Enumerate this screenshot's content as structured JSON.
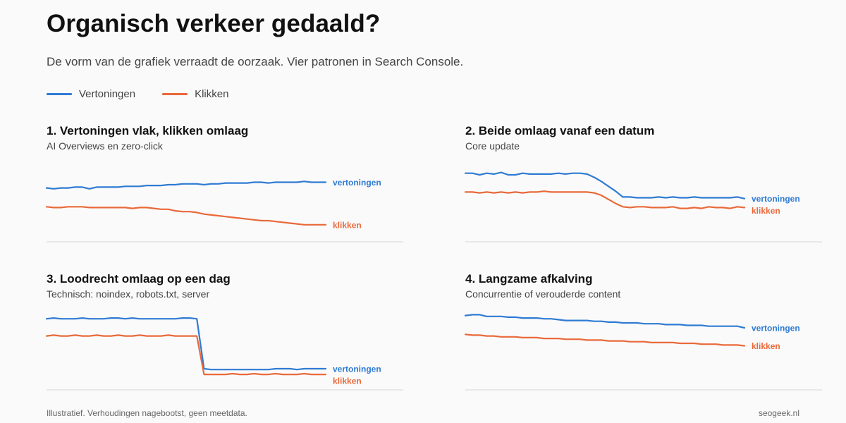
{
  "header": {
    "title": "Organisch verkeer gedaald?",
    "subtitle": "De vorm van de grafiek verraadt de oorzaak. Vier patronen in Search Console."
  },
  "legend": {
    "items": [
      {
        "label": "Vertoningen",
        "color": "#2f7bd3"
      },
      {
        "label": "Klikken",
        "color": "#e9693a"
      }
    ]
  },
  "footer": {
    "note": "Illustratief. Verhoudingen nagebootst, geen meetdata.",
    "source": "seogeek.nl"
  },
  "chart_data": [
    {
      "type": "line",
      "title": "1. Vertoningen vlak, klikken omlaag",
      "subtitle": "AI Overviews en zero-click",
      "series": [
        {
          "name": "vertoningen",
          "color": "#2f7bd3",
          "end_label": "vertoningen",
          "values": [
            65,
            64,
            65,
            65,
            66,
            66,
            64,
            66,
            66,
            66,
            66,
            67,
            67,
            67,
            68,
            68,
            68,
            69,
            69,
            70,
            70,
            70,
            69,
            70,
            70,
            71,
            71,
            71,
            71,
            72,
            72,
            71,
            72,
            72,
            72,
            72,
            73,
            72,
            72,
            72
          ]
        },
        {
          "name": "klikken",
          "color": "#e9693a",
          "end_label": "klikken",
          "values": [
            42,
            41,
            41,
            42,
            42,
            42,
            41,
            41,
            41,
            41,
            41,
            41,
            40,
            41,
            41,
            40,
            39,
            39,
            37,
            36,
            36,
            35,
            33,
            32,
            31,
            30,
            29,
            28,
            27,
            26,
            25,
            25,
            24,
            23,
            22,
            21,
            20,
            20,
            20,
            20
          ]
        }
      ]
    },
    {
      "type": "line",
      "title": "2. Beide omlaag vanaf een datum",
      "subtitle": "Core update",
      "series": [
        {
          "name": "vertoningen",
          "color": "#2f7bd3",
          "end_label": "vertoningen",
          "values": [
            83,
            83,
            81,
            83,
            82,
            84,
            81,
            81,
            83,
            82,
            82,
            82,
            82,
            83,
            82,
            83,
            83,
            82,
            78,
            73,
            67,
            61,
            54,
            54,
            53,
            53,
            53,
            54,
            53,
            54,
            53,
            53,
            54,
            53,
            53,
            53,
            53,
            53,
            54,
            52
          ]
        },
        {
          "name": "klikken",
          "color": "#e9693a",
          "end_label": "klikken",
          "values": [
            60,
            60,
            59,
            60,
            59,
            60,
            59,
            60,
            59,
            60,
            60,
            61,
            60,
            60,
            60,
            60,
            60,
            60,
            59,
            56,
            51,
            46,
            42,
            41,
            42,
            42,
            41,
            41,
            41,
            42,
            40,
            40,
            41,
            40,
            42,
            41,
            41,
            40,
            42,
            41
          ]
        }
      ]
    },
    {
      "type": "line",
      "title": "3. Loodrecht omlaag op een dag",
      "subtitle": "Technisch: noindex, robots.txt, server",
      "series": [
        {
          "name": "vertoningen",
          "color": "#2f7bd3",
          "end_label": "vertoningen",
          "values": [
            86,
            87,
            86,
            86,
            86,
            87,
            86,
            86,
            86,
            87,
            87,
            86,
            87,
            86,
            86,
            86,
            86,
            86,
            86,
            87,
            87,
            86,
            25,
            24,
            24,
            24,
            24,
            24,
            24,
            24,
            24,
            24,
            25,
            25,
            25,
            24,
            25,
            25,
            25,
            25
          ]
        },
        {
          "name": "klikken",
          "color": "#e9693a",
          "end_label": "klikken",
          "values": [
            65,
            66,
            65,
            65,
            66,
            65,
            65,
            66,
            65,
            65,
            66,
            65,
            65,
            66,
            65,
            65,
            65,
            66,
            65,
            65,
            65,
            65,
            18,
            18,
            18,
            18,
            19,
            18,
            18,
            19,
            18,
            18,
            19,
            18,
            18,
            18,
            19,
            18,
            18,
            18
          ]
        }
      ]
    },
    {
      "type": "line",
      "title": "4. Langzame afkalving",
      "subtitle": "Concurrentie of verouderde content",
      "series": [
        {
          "name": "vertoningen",
          "color": "#2f7bd3",
          "end_label": "vertoningen",
          "values": [
            90,
            91,
            91,
            89,
            89,
            89,
            88,
            88,
            87,
            87,
            87,
            86,
            86,
            85,
            84,
            84,
            84,
            84,
            83,
            83,
            82,
            82,
            81,
            81,
            81,
            80,
            80,
            80,
            79,
            79,
            79,
            78,
            78,
            78,
            77,
            77,
            77,
            77,
            77,
            75
          ]
        },
        {
          "name": "klikken",
          "color": "#e9693a",
          "end_label": "klikken",
          "values": [
            67,
            66,
            66,
            65,
            65,
            64,
            64,
            64,
            63,
            63,
            63,
            62,
            62,
            62,
            61,
            61,
            61,
            60,
            60,
            60,
            59,
            59,
            59,
            58,
            58,
            58,
            57,
            57,
            57,
            57,
            56,
            56,
            56,
            55,
            55,
            55,
            54,
            54,
            54,
            53
          ]
        }
      ]
    }
  ]
}
